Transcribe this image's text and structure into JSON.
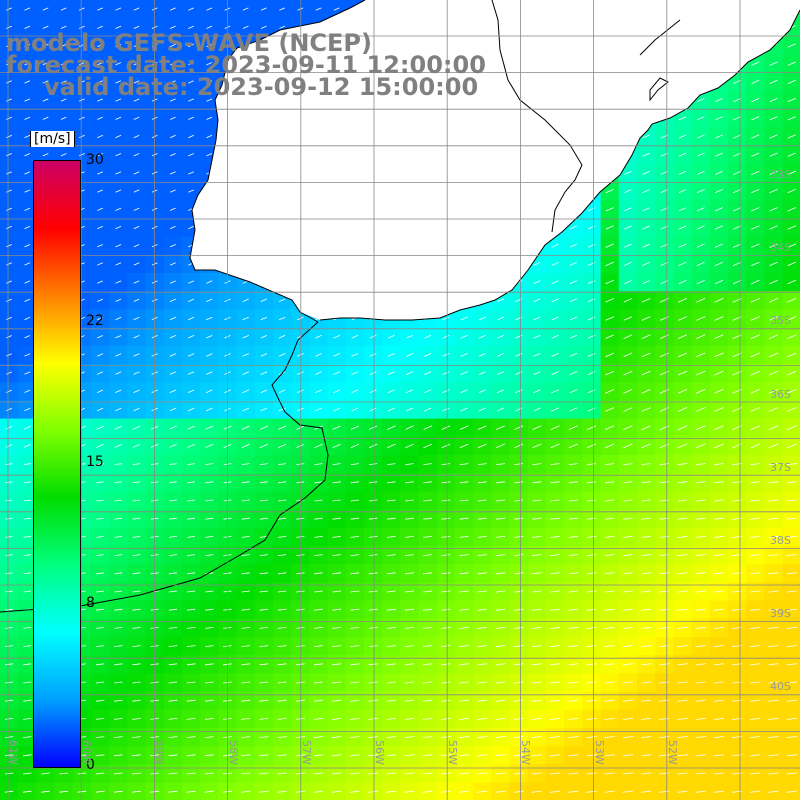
{
  "title": {
    "line1": "modelo GEFS-WAVE (NCEP)",
    "line2": "forecast date: 2023-09-11 12:00:00",
    "line3": "valid date: 2023-09-12 15:00:00"
  },
  "colorbar": {
    "unit": "[m/s]",
    "ticks": [
      "30",
      "22",
      "15",
      "8",
      "0"
    ],
    "tick_values": [
      30,
      22,
      15,
      8,
      0
    ],
    "range": [
      0,
      30
    ],
    "palette": [
      "#0000ff",
      "#00a0ff",
      "#00ffff",
      "#00ff80",
      "#00dd00",
      "#80ff00",
      "#ffff00",
      "#ff8000",
      "#ff0000",
      "#cc0066"
    ]
  },
  "grid": {
    "lon_labels": [
      "61W",
      "60W",
      "59W",
      "58W",
      "57W",
      "56W",
      "55W",
      "54W",
      "53W",
      "52W"
    ],
    "lat_labels": [
      "33S",
      "34S",
      "35S",
      "36S",
      "37S",
      "38S",
      "39S",
      "40S"
    ]
  },
  "colors": {
    "land": "#ffffff",
    "coast": "#000000",
    "grid": "#888888",
    "arrow": "#ffffff"
  }
}
